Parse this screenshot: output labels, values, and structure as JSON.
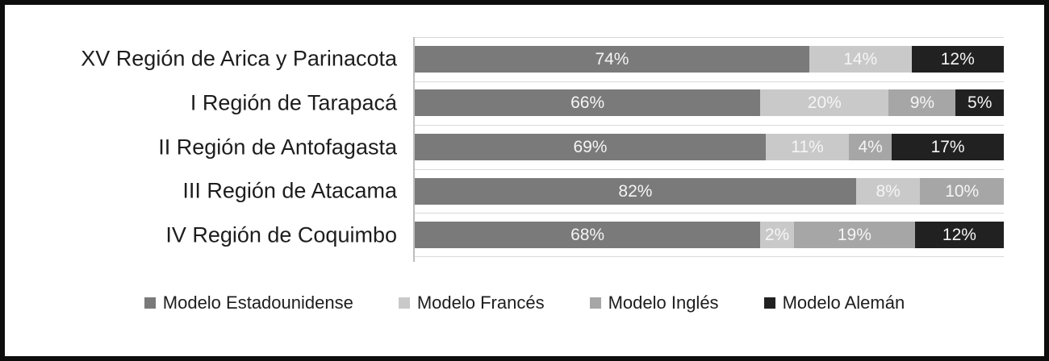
{
  "chart_data": {
    "type": "bar",
    "orientation": "horizontal",
    "stacked": true,
    "title": "",
    "xlabel": "",
    "ylabel": "",
    "xlim": [
      0,
      100
    ],
    "unit": "%",
    "grid": "category-band-boundaries",
    "legend_position": "bottom",
    "categories": [
      "XV Región de Arica y Parinacota",
      "I Región de Tarapacá",
      "II Región de Antofagasta",
      "III Región de Atacama",
      "IV Región de Coquimbo"
    ],
    "series": [
      {
        "name": "Modelo Estadounidense",
        "color": "#7a7a7a",
        "values": [
          74,
          66,
          69,
          82,
          68
        ]
      },
      {
        "name": "Modelo Francés",
        "color": "#c9c9c9",
        "values": [
          14,
          20,
          11,
          8,
          2
        ]
      },
      {
        "name": "Modelo Inglés",
        "color": "#a6a6a6",
        "values": [
          0,
          9,
          4,
          10,
          19
        ]
      },
      {
        "name": "Modelo Alemán",
        "color": "#212121",
        "values": [
          12,
          5,
          17,
          0,
          12
        ]
      }
    ],
    "value_label_suffix": "%",
    "style_colors": {
      "frame_border": "#0d0d0d",
      "background": "#ffffff",
      "gridline": "#d9d9d9",
      "axis_line": "#bdbdbd",
      "category_text": "#1d1d1d",
      "value_text": "#f5f5f5"
    }
  }
}
